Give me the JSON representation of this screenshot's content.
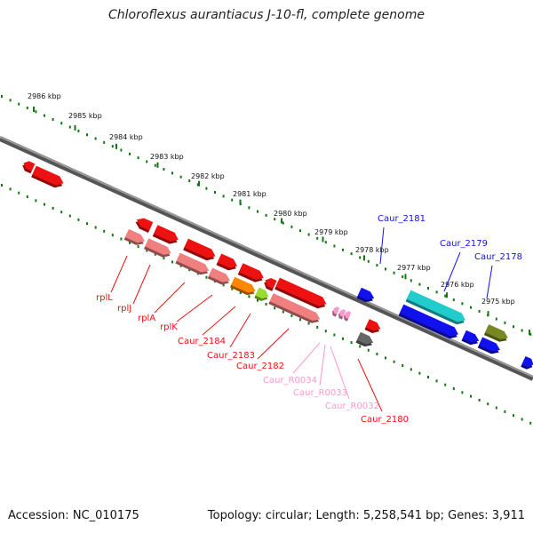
{
  "title": "Chloroflexus aurantiacus J-10-fl, complete genome",
  "footer": {
    "accession": "Accession: NC_010175",
    "summary": "Topology: circular; Length: 5,258,541 bp; Genes: 3,911"
  },
  "kbp_ticks": [
    "2986 kbp",
    "2985 kbp",
    "2984 kbp",
    "2983 kbp",
    "2982 kbp",
    "2981 kbp",
    "2980 kbp",
    "2979 kbp",
    "2978 kbp",
    "2977 kbp",
    "2976 kbp",
    "2975 kbp"
  ],
  "colors": {
    "red": "#ee1111",
    "salmon": "#f08080",
    "orange": "#ff8800",
    "lightgreen": "#99dd33",
    "pink": "#ff99cc",
    "gray": "#666666",
    "blue": "#1111ee",
    "cyan": "#22cccc",
    "olive": "#778822",
    "backbone": "#777777",
    "tick_green": "#117711"
  },
  "gene_labels": [
    {
      "text": "rplL",
      "color": "red"
    },
    {
      "text": "rplJ",
      "color": "red"
    },
    {
      "text": "rplA",
      "color": "red"
    },
    {
      "text": "rplK",
      "color": "red"
    },
    {
      "text": "Caur_2184",
      "color": "red"
    },
    {
      "text": "Caur_2183",
      "color": "red"
    },
    {
      "text": "Caur_2182",
      "color": "red"
    },
    {
      "text": "Caur_R0034",
      "color": "pink"
    },
    {
      "text": "Caur_R0033",
      "color": "pink"
    },
    {
      "text": "Caur_R0032",
      "color": "pink"
    },
    {
      "text": "Caur_2180",
      "color": "red"
    },
    {
      "text": "Caur_2181",
      "color": "blue"
    },
    {
      "text": "Caur_2179",
      "color": "blue"
    },
    {
      "text": "Caur_2178",
      "color": "blue"
    }
  ]
}
